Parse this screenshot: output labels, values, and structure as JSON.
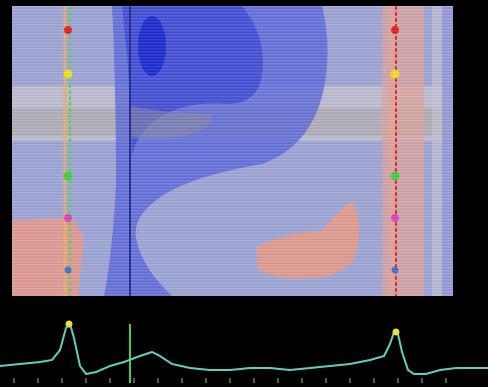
{
  "map": {
    "colors": {
      "background": "#9ea6d6",
      "deep_blue": "#1d2bd1",
      "mid_blue": "#4a56d8",
      "light_blue": "#7f88dc",
      "pale_band": "#c9c6cf",
      "gray_band": "#9a9a9a",
      "salmon": "#e59a8e",
      "cursor_line": "#1b2a8a"
    },
    "markers_left_colors": [
      "#e02020",
      "#f0e020",
      "#40d040",
      "#e040c0",
      "#4070d0"
    ],
    "markers_right_colors": [
      "#e02020",
      "#f0e020",
      "#40d040",
      "#e040c0",
      "#4070d0"
    ]
  },
  "trace": {
    "line_color": "#5fcfc0",
    "cursor_color": "#40d040",
    "peak_marker_color": "#f0e040"
  }
}
